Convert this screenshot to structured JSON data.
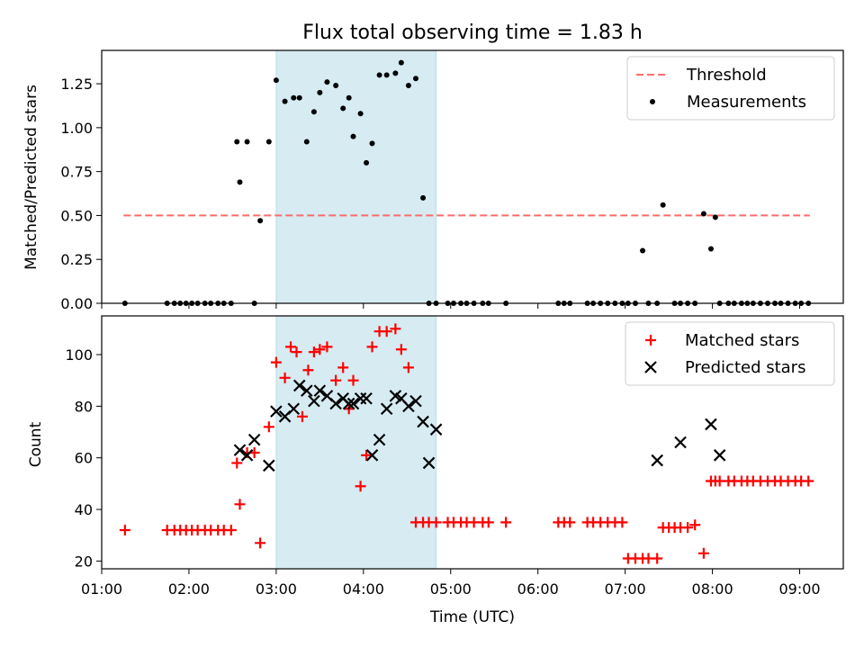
{
  "chart_data": [
    {
      "type": "scatter",
      "title": "Flux total observing time = 1.83 h",
      "xlabel": "",
      "ylabel": "Matched/Predicted stars",
      "xlim": [
        "01:00",
        "09:30"
      ],
      "ylim": [
        0,
        1.44
      ],
      "x_ticks": [
        "01:00",
        "02:00",
        "03:00",
        "04:00",
        "05:00",
        "06:00",
        "07:00",
        "08:00",
        "09:00"
      ],
      "y_ticks": [
        "0.00",
        "0.25",
        "0.50",
        "0.75",
        "1.00",
        "1.25"
      ],
      "highlight_span": {
        "start": "03:00",
        "end": "04:50",
        "color": "#add8e6"
      },
      "legend": {
        "position": "upper right",
        "entries": [
          "Threshold",
          "Measurements"
        ]
      },
      "series": [
        {
          "name": "Threshold",
          "kind": "line",
          "style": "dashed",
          "color": "#ff6b6b",
          "x": [
            "01:15",
            "09:07"
          ],
          "y": [
            0.5,
            0.5
          ]
        },
        {
          "name": "Measurements",
          "kind": "scatter",
          "color": "#000000",
          "x": [
            "01:16",
            "01:45",
            "01:50",
            "01:54",
            "01:58",
            "02:02",
            "02:06",
            "02:11",
            "02:15",
            "02:20",
            "02:24",
            "02:29",
            "02:33",
            "02:35",
            "02:40",
            "02:45",
            "02:49",
            "02:55",
            "03:00",
            "03:06",
            "03:12",
            "03:16",
            "03:21",
            "03:26",
            "03:30",
            "03:35",
            "03:41",
            "03:46",
            "03:50",
            "03:53",
            "03:58",
            "04:02",
            "04:06",
            "04:11",
            "04:16",
            "04:22",
            "04:26",
            "04:31",
            "04:36",
            "04:41",
            "04:45",
            "04:50",
            "04:58",
            "05:02",
            "05:07",
            "05:11",
            "05:16",
            "05:22",
            "05:26",
            "05:38",
            "06:14",
            "06:18",
            "06:22",
            "06:34",
            "06:38",
            "06:43",
            "06:48",
            "06:53",
            "06:58",
            "07:02",
            "07:07",
            "07:12",
            "07:16",
            "07:22",
            "07:26",
            "07:34",
            "07:38",
            "07:43",
            "07:48",
            "07:54",
            "07:59",
            "08:02",
            "08:05",
            "08:11",
            "08:15",
            "08:20",
            "08:24",
            "08:28",
            "08:33",
            "08:38",
            "08:43",
            "08:47",
            "08:52",
            "08:57",
            "09:01",
            "09:06"
          ],
          "y": [
            0,
            0,
            0,
            0,
            0,
            0,
            0,
            0,
            0,
            0,
            0,
            0,
            0.92,
            0.69,
            0.92,
            0,
            0.47,
            0.92,
            1.27,
            1.15,
            1.17,
            1.17,
            0.92,
            1.09,
            1.2,
            1.26,
            1.24,
            1.11,
            1.17,
            0.95,
            1.08,
            0.8,
            0.91,
            1.3,
            1.3,
            1.31,
            1.37,
            1.24,
            1.28,
            0.6,
            0,
            0,
            0,
            0,
            0,
            0,
            0,
            0,
            0,
            0,
            0,
            0,
            0,
            0,
            0,
            0,
            0,
            0,
            0,
            0,
            0,
            0.3,
            0,
            0,
            0.56,
            0,
            0,
            0,
            0,
            0.51,
            0.31,
            0.49,
            0,
            0,
            0,
            0,
            0,
            0,
            0,
            0,
            0,
            0,
            0,
            0,
            0,
            0
          ]
        }
      ]
    },
    {
      "type": "scatter",
      "title": "",
      "xlabel": "Time (UTC)",
      "ylabel": "Count",
      "xlim": [
        "01:00",
        "09:30"
      ],
      "ylim": [
        17,
        115
      ],
      "x_ticks": [
        "01:00",
        "02:00",
        "03:00",
        "04:00",
        "05:00",
        "06:00",
        "07:00",
        "08:00",
        "09:00"
      ],
      "y_ticks": [
        "20",
        "40",
        "60",
        "80",
        "100"
      ],
      "highlight_span": {
        "start": "03:00",
        "end": "04:50",
        "color": "#add8e6"
      },
      "legend": {
        "position": "upper right",
        "entries": [
          "Matched stars",
          "Predicted stars"
        ]
      },
      "series": [
        {
          "name": "Matched stars",
          "kind": "scatter",
          "marker": "plus",
          "color": "#ff0000",
          "x": [
            "01:16",
            "01:45",
            "01:50",
            "01:54",
            "01:58",
            "02:02",
            "02:06",
            "02:11",
            "02:15",
            "02:20",
            "02:24",
            "02:29",
            "02:33",
            "02:35",
            "02:40",
            "02:45",
            "02:49",
            "02:55",
            "03:00",
            "03:06",
            "03:10",
            "03:14",
            "03:18",
            "03:22",
            "03:26",
            "03:30",
            "03:35",
            "03:41",
            "03:46",
            "03:50",
            "03:53",
            "03:58",
            "04:02",
            "04:06",
            "04:11",
            "04:16",
            "04:22",
            "04:26",
            "04:31",
            "04:36",
            "04:41",
            "04:45",
            "04:50",
            "04:58",
            "05:02",
            "05:07",
            "05:11",
            "05:16",
            "05:22",
            "05:26",
            "05:38",
            "06:14",
            "06:18",
            "06:22",
            "06:34",
            "06:38",
            "06:43",
            "06:48",
            "06:53",
            "06:58",
            "07:02",
            "07:07",
            "07:12",
            "07:16",
            "07:22",
            "07:26",
            "07:30",
            "07:34",
            "07:38",
            "07:43",
            "07:48",
            "07:54",
            "07:59",
            "08:02",
            "08:05",
            "08:11",
            "08:15",
            "08:20",
            "08:24",
            "08:28",
            "08:33",
            "08:38",
            "08:43",
            "08:47",
            "08:52",
            "08:57",
            "09:01",
            "09:06"
          ],
          "y": [
            32,
            32,
            32,
            32,
            32,
            32,
            32,
            32,
            32,
            32,
            32,
            32,
            58,
            42,
            62,
            62,
            27,
            72,
            97,
            91,
            103,
            101,
            76,
            94,
            101,
            102,
            103,
            90,
            95,
            79,
            90,
            49,
            61,
            103,
            109,
            109,
            110,
            102,
            95,
            35,
            35,
            35,
            35,
            35,
            35,
            35,
            35,
            35,
            35,
            35,
            35,
            35,
            35,
            35,
            35,
            35,
            35,
            35,
            35,
            35,
            21,
            21,
            21,
            21,
            21,
            33,
            33,
            33,
            33,
            33,
            34,
            23,
            51,
            51,
            51,
            51,
            51,
            51,
            51,
            51,
            51,
            51,
            51,
            51,
            51,
            51,
            51,
            51
          ]
        },
        {
          "name": "Predicted stars",
          "kind": "scatter",
          "marker": "x",
          "color": "#000000",
          "x": [
            "02:35",
            "02:40",
            "02:45",
            "02:55",
            "03:00",
            "03:06",
            "03:12",
            "03:16",
            "03:21",
            "03:26",
            "03:30",
            "03:35",
            "03:41",
            "03:46",
            "03:50",
            "03:53",
            "03:58",
            "04:02",
            "04:06",
            "04:11",
            "04:16",
            "04:22",
            "04:26",
            "04:31",
            "04:36",
            "04:41",
            "04:45",
            "04:50",
            "07:22",
            "07:38",
            "07:59",
            "08:05"
          ],
          "y": [
            63,
            61,
            67,
            57,
            78,
            76,
            79,
            88,
            86,
            82,
            86,
            84,
            81,
            83,
            81,
            81,
            83,
            83,
            61,
            67,
            79,
            84,
            83,
            80,
            82,
            74,
            58,
            71,
            59,
            66,
            73,
            61
          ]
        }
      ]
    }
  ]
}
